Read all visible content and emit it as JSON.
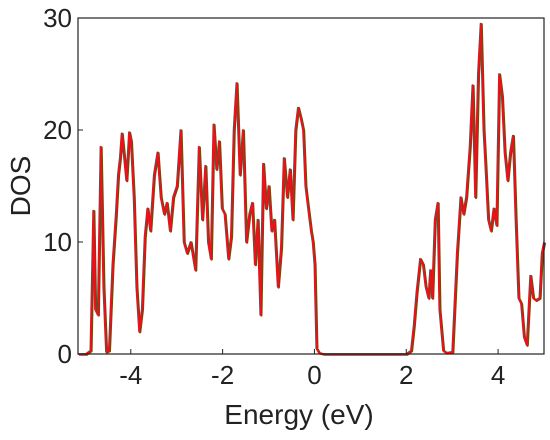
{
  "chart_data": {
    "type": "line",
    "xlabel": "Energy (eV)",
    "ylabel": "DOS",
    "xlim": [
      -5.15,
      5.0
    ],
    "ylim": [
      0,
      30
    ],
    "xticks": [
      -4,
      -2,
      0,
      2,
      4
    ],
    "xtick_labels": [
      "-4",
      "-2",
      "0",
      "2",
      "4"
    ],
    "yticks": [
      0,
      10,
      20,
      30
    ],
    "ytick_labels": [
      "0",
      "10",
      "20",
      "30"
    ],
    "grid": false,
    "legend": "none",
    "series": [
      {
        "color": "#e8141b",
        "x": [
          -5.15,
          -4.98,
          -4.88,
          -4.82,
          -4.78,
          -4.72,
          -4.66,
          -4.6,
          -4.54,
          -4.48,
          -4.4,
          -4.33,
          -4.28,
          -4.24,
          -4.2,
          -4.16,
          -4.1,
          -4.04,
          -4.0,
          -3.94,
          -3.88,
          -3.82,
          -3.76,
          -3.7,
          -3.64,
          -3.58,
          -3.5,
          -3.42,
          -3.35,
          -3.28,
          -3.22,
          -3.15,
          -3.08,
          -3.0,
          -2.92,
          -2.85,
          -2.78,
          -2.7,
          -2.6,
          -2.52,
          -2.45,
          -2.38,
          -2.32,
          -2.26,
          -2.2,
          -2.14,
          -2.08,
          -2.02,
          -1.96,
          -1.88,
          -1.82,
          -1.76,
          -1.7,
          -1.63,
          -1.56,
          -1.49,
          -1.42,
          -1.36,
          -1.3,
          -1.24,
          -1.18,
          -1.12,
          -1.06,
          -1.0,
          -0.94,
          -0.88,
          -0.8,
          -0.73,
          -0.67,
          -0.6,
          -0.54,
          -0.48,
          -0.42,
          -0.36,
          -0.3,
          -0.25,
          -0.2,
          -0.14,
          -0.08,
          -0.04,
          0.0,
          0.04,
          0.1,
          0.2,
          1.0,
          2.0,
          2.1,
          2.16,
          2.22,
          2.3,
          2.36,
          2.42,
          2.48,
          2.52,
          2.56,
          2.62,
          2.68,
          2.72,
          2.8,
          2.88,
          3.0,
          3.1,
          3.18,
          3.24,
          3.3,
          3.38,
          3.44,
          3.5,
          3.56,
          3.62,
          3.68,
          3.72,
          3.78,
          3.84,
          3.9,
          3.96,
          4.02,
          4.08,
          4.14,
          4.2,
          4.26,
          4.32,
          4.38,
          4.44,
          4.5,
          4.56,
          4.62,
          4.7,
          4.76,
          4.82,
          4.9,
          4.95,
          5.0
        ],
        "values": [
          0.0,
          0.0,
          0.3,
          12.8,
          4.0,
          3.5,
          18.5,
          6.0,
          0.2,
          0.3,
          8.0,
          12.3,
          16.0,
          17.5,
          19.7,
          18.0,
          15.5,
          19.8,
          19.0,
          14.0,
          6.0,
          2.0,
          4.0,
          10.5,
          13.0,
          11.0,
          16.0,
          18.0,
          14.0,
          12.5,
          13.5,
          11.0,
          14.0,
          15.0,
          20.0,
          10.0,
          9.0,
          10.0,
          7.5,
          18.5,
          12.0,
          16.8,
          10.0,
          8.5,
          20.5,
          16.5,
          19.0,
          13.0,
          12.5,
          8.5,
          10.5,
          20.0,
          24.2,
          16.0,
          20.0,
          10.0,
          12.5,
          13.5,
          8.0,
          12.0,
          3.5,
          17.0,
          13.0,
          15.0,
          11.0,
          12.0,
          6.0,
          9.5,
          17.5,
          14.0,
          16.5,
          12.0,
          20.0,
          22.0,
          21.0,
          20.0,
          15.0,
          13.0,
          11.0,
          10.0,
          8.0,
          0.5,
          0.1,
          0.0,
          0.0,
          0.0,
          0.3,
          2.5,
          5.5,
          8.5,
          8.0,
          6.0,
          5.0,
          7.5,
          5.0,
          12.0,
          13.5,
          4.0,
          0.3,
          0.1,
          0.2,
          9.0,
          14.0,
          12.5,
          14.0,
          18.5,
          24.0,
          14.0,
          25.0,
          29.5,
          20.0,
          17.0,
          12.0,
          11.0,
          13.0,
          11.5,
          25.0,
          23.0,
          18.0,
          15.5,
          18.0,
          19.5,
          12.0,
          5.0,
          4.5,
          1.5,
          0.8,
          7.0,
          5.0,
          4.8,
          5.0,
          9.0,
          10.0
        ]
      }
    ]
  }
}
